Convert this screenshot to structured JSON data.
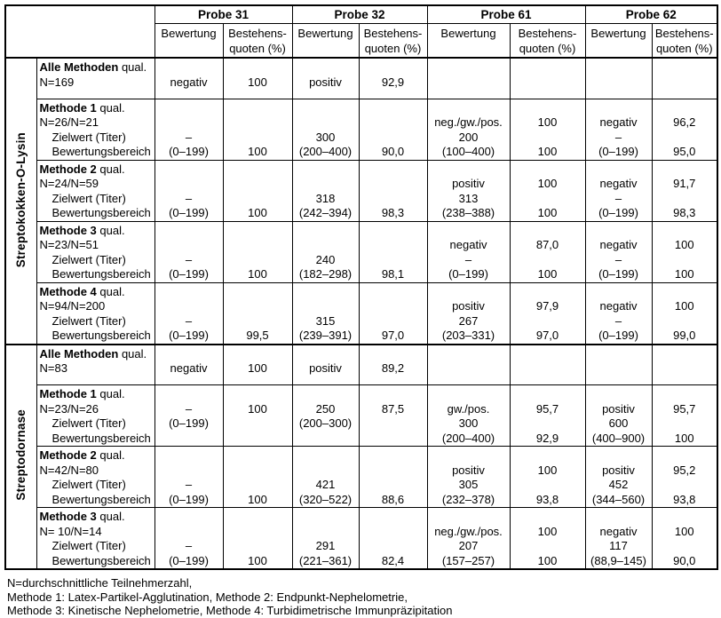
{
  "table": {
    "probes": [
      "Probe 31",
      "Probe 32",
      "Probe 61",
      "Probe 62"
    ],
    "subheader": {
      "bewertung": "Bewertung",
      "quoten_line1": "Bestehens-",
      "quoten_line2": "quoten (%)"
    },
    "groups": [
      {
        "label": "Streptokokken-O-Lysin",
        "rows": [
          {
            "label_lines": [
              {
                "b": "Alle Methoden",
                "t": " qual."
              },
              {
                "t": "N=169"
              }
            ],
            "cells": [
              [
                "",
                "negativ"
              ],
              [
                "",
                "100"
              ],
              [
                "",
                "positiv"
              ],
              [
                "",
                "92,9"
              ],
              [
                "",
                ""
              ],
              [
                "",
                ""
              ],
              [
                "",
                ""
              ],
              [
                "",
                ""
              ]
            ]
          },
          {
            "label_lines": [
              {
                "b": "Methode 1",
                "t": " qual."
              },
              {
                "t": "N=26/N=21"
              },
              {
                "t": "Zielwert (Titer)",
                "indent": true
              },
              {
                "t": "Bewertungsbereich",
                "indent": true
              }
            ],
            "cells": [
              [
                "",
                "",
                "–",
                "(0–199)"
              ],
              [
                "",
                "",
                "",
                "100"
              ],
              [
                "",
                "",
                "300",
                "(200–400)"
              ],
              [
                "",
                "",
                "",
                "90,0"
              ],
              [
                "",
                "neg./gw./pos.",
                "200",
                "(100–400)"
              ],
              [
                "",
                "100",
                "",
                "100"
              ],
              [
                "",
                "negativ",
                "–",
                "(0–199)"
              ],
              [
                "",
                "96,2",
                "",
                "95,0"
              ]
            ]
          },
          {
            "label_lines": [
              {
                "b": "Methode 2",
                "t": " qual."
              },
              {
                "t": "N=24/N=59"
              },
              {
                "t": "Zielwert (Titer)",
                "indent": true
              },
              {
                "t": "Bewertungsbereich",
                "indent": true
              }
            ],
            "cells": [
              [
                "",
                "",
                "–",
                "(0–199)"
              ],
              [
                "",
                "",
                "",
                "100"
              ],
              [
                "",
                "",
                "318",
                "(242–394)"
              ],
              [
                "",
                "",
                "",
                "98,3"
              ],
              [
                "",
                "positiv",
                "313",
                "(238–388)"
              ],
              [
                "",
                "100",
                "",
                "100"
              ],
              [
                "",
                "negativ",
                "–",
                "(0–199)"
              ],
              [
                "",
                "91,7",
                "",
                "98,3"
              ]
            ]
          },
          {
            "label_lines": [
              {
                "b": "Methode 3",
                "t": " qual."
              },
              {
                "t": "N=23/N=51"
              },
              {
                "t": "Zielwert (Titer)",
                "indent": true
              },
              {
                "t": "Bewertungsbereich",
                "indent": true
              }
            ],
            "cells": [
              [
                "",
                "",
                "–",
                "(0–199)"
              ],
              [
                "",
                "",
                "",
                "100"
              ],
              [
                "",
                "",
                "240",
                "(182–298)"
              ],
              [
                "",
                "",
                "",
                "98,1"
              ],
              [
                "",
                "negativ",
                "–",
                "(0–199)"
              ],
              [
                "",
                "87,0",
                "",
                "100"
              ],
              [
                "",
                "negativ",
                "–",
                "(0–199)"
              ],
              [
                "",
                "100",
                "",
                "100"
              ]
            ]
          },
          {
            "label_lines": [
              {
                "b": "Methode 4",
                "t": " qual."
              },
              {
                "t": "N=94/N=200"
              },
              {
                "t": "Zielwert (Titer)",
                "indent": true
              },
              {
                "t": "Bewertungsbereich",
                "indent": true
              }
            ],
            "cells": [
              [
                "",
                "",
                "–",
                "(0–199)"
              ],
              [
                "",
                "",
                "",
                "99,5"
              ],
              [
                "",
                "",
                "315",
                "(239–391)"
              ],
              [
                "",
                "",
                "",
                "97,0"
              ],
              [
                "",
                "positiv",
                "267",
                "(203–331)"
              ],
              [
                "",
                "97,9",
                "",
                "97,0"
              ],
              [
                "",
                "negativ",
                "–",
                "(0–199)"
              ],
              [
                "",
                "100",
                "",
                "99,0"
              ]
            ]
          }
        ]
      },
      {
        "label": "Streptodornase",
        "rows": [
          {
            "label_lines": [
              {
                "b": "Alle Methoden",
                "t": " qual."
              },
              {
                "t": "N=83"
              }
            ],
            "cells": [
              [
                "",
                "negativ"
              ],
              [
                "",
                "100"
              ],
              [
                "",
                "positiv"
              ],
              [
                "",
                "89,2"
              ],
              [
                "",
                ""
              ],
              [
                "",
                ""
              ],
              [
                "",
                ""
              ],
              [
                "",
                ""
              ]
            ]
          },
          {
            "label_lines": [
              {
                "b": "Methode 1",
                "t": " qual."
              },
              {
                "t": "N=23/N=26"
              },
              {
                "t": "Zielwert (Titer)",
                "indent": true
              },
              {
                "t": "Bewertungsbereich",
                "indent": true
              }
            ],
            "cells": [
              [
                "",
                "–",
                "(0–199)",
                ""
              ],
              [
                "",
                "100",
                "",
                ""
              ],
              [
                "",
                "250",
                "(200–300)",
                ""
              ],
              [
                "",
                "87,5",
                "",
                ""
              ],
              [
                "",
                "gw./pos.",
                "300",
                "(200–400)"
              ],
              [
                "",
                "95,7",
                "",
                "92,9"
              ],
              [
                "",
                "positiv",
                "600",
                "(400–900)"
              ],
              [
                "",
                "95,7",
                "",
                "100"
              ]
            ]
          },
          {
            "label_lines": [
              {
                "b": "Methode 2",
                "t": " qual."
              },
              {
                "t": "N=42/N=80"
              },
              {
                "t": "Zielwert (Titer)",
                "indent": true
              },
              {
                "t": "Bewertungsbereich",
                "indent": true
              }
            ],
            "cells": [
              [
                "",
                "",
                "–",
                "(0–199)"
              ],
              [
                "",
                "",
                "",
                "100"
              ],
              [
                "",
                "",
                "421",
                "(320–522)"
              ],
              [
                "",
                "",
                "",
                "88,6"
              ],
              [
                "",
                "positiv",
                "305",
                "(232–378)"
              ],
              [
                "",
                "100",
                "",
                "93,8"
              ],
              [
                "",
                "positiv",
                "452",
                "(344–560)"
              ],
              [
                "",
                "95,2",
                "",
                "93,8"
              ]
            ]
          },
          {
            "label_lines": [
              {
                "b": "Methode 3",
                "t": " qual."
              },
              {
                "t": "N= 10/N=14"
              },
              {
                "t": "Zielwert (Titer)",
                "indent": true
              },
              {
                "t": "Bewertungsbereich",
                "indent": true
              }
            ],
            "cells": [
              [
                "",
                "",
                "–",
                "(0–199)"
              ],
              [
                "",
                "",
                "",
                "100"
              ],
              [
                "",
                "",
                "291",
                "(221–361)"
              ],
              [
                "",
                "",
                "",
                "82,4"
              ],
              [
                "",
                "neg./gw./pos.",
                "207",
                "(157–257)"
              ],
              [
                "",
                "100",
                "",
                "100"
              ],
              [
                "",
                "negativ",
                "117",
                "(88,9–145)"
              ],
              [
                "",
                "100",
                "",
                "90,0"
              ]
            ]
          }
        ]
      }
    ]
  },
  "footnotes": [
    "N=durchschnittliche Teilnehmerzahl,",
    "Methode 1: Latex-Partikel-Agglutination, Methode 2: Endpunkt-Nephelometrie,",
    "Methode 3: Kinetische Nephelometrie, Methode 4: Turbidimetrische Immunpräzipitation"
  ]
}
